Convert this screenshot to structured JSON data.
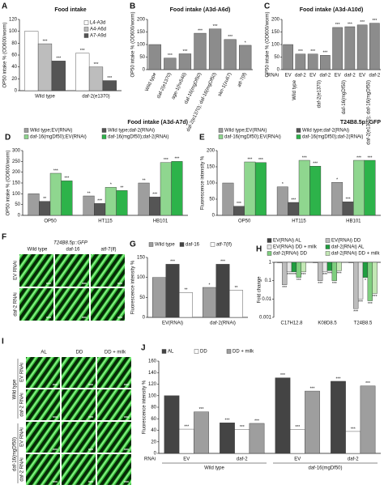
{
  "chart_data": [
    {
      "type": "bar",
      "panel": "A",
      "title": "Food intake",
      "ylabel": "OP50 intake % (OD600/worm)",
      "categories": [
        "Wild type",
        "daf-2(e1370)"
      ],
      "series": [
        {
          "name": "L4-A3d",
          "color": "#ffffff",
          "values": [
            100,
            63
          ],
          "stars": [
            null,
            "***"
          ]
        },
        {
          "name": "A4-A6d",
          "color": "#bdbdbd",
          "values": [
            79,
            40
          ],
          "stars": [
            "***",
            "***"
          ]
        },
        {
          "name": "A7-A9d",
          "color": "#555555",
          "values": [
            50,
            17
          ],
          "stars": [
            "***",
            "***"
          ]
        }
      ],
      "ylim": [
        0,
        120
      ],
      "yticks": [
        0,
        20,
        40,
        60,
        80,
        100,
        120
      ]
    },
    {
      "type": "bar",
      "panel": "B",
      "title": "Food intake (A3d-A6d)",
      "ylabel": "OP50 intake % (OD600/worm)",
      "categories": [
        "Wild type",
        "daf-2(e1370)",
        "age-1(hx546)",
        "daf-16(mgDf50)",
        "daf-2(e1370); daf-16(mgDf50)",
        "skn-1(zu67)",
        "atf-7(lf)"
      ],
      "color": "#8c8c8c",
      "values": [
        100,
        46,
        63,
        145,
        162,
        120,
        97
      ],
      "stars": [
        null,
        "***",
        "***",
        "***",
        "***",
        "***",
        "*"
      ],
      "ylim": [
        0,
        200
      ],
      "yticks": [
        0,
        50,
        100,
        150,
        200
      ]
    },
    {
      "type": "bar",
      "panel": "C",
      "title": "Food intake (A3d-A10d)",
      "ylabel": "OP50 intake % (OD600/worm)",
      "rnai_label": "RNAi",
      "categories": [
        "EV",
        "daf-2",
        "EV",
        "daf-2",
        "EV",
        "daf-2",
        "EV",
        "daf-2"
      ],
      "groups": [
        "Wild type",
        "daf-2(e1370)",
        "daf-16(mgDf50)",
        "daf-2(e1370); daf-16(mgDf50)"
      ],
      "color": "#8c8c8c",
      "values": [
        100,
        62,
        62,
        57,
        168,
        171,
        178,
        185
      ],
      "stars": [
        null,
        "***",
        "***",
        "***",
        "***",
        "***",
        "***",
        "***"
      ],
      "ylim": [
        0,
        200
      ],
      "yticks": [
        0,
        50,
        100,
        150,
        200
      ]
    },
    {
      "type": "bar",
      "panel": "D",
      "title": "Food intake (A3d-A7d)",
      "ylabel": "OP50 intake % (OD600/worm)",
      "categories": [
        "OP50",
        "HT115",
        "HB101"
      ],
      "series": [
        {
          "name": "Wild type;EV(RNAi)",
          "color": "#9e9e9e",
          "values": [
            100,
            90,
            150
          ],
          "stars": [
            null,
            "**",
            "**"
          ]
        },
        {
          "name": "Wild type;daf-2(RNAi)",
          "color": "#555555",
          "values": [
            65,
            55,
            85
          ],
          "stars": [
            "**",
            "***",
            "***"
          ]
        },
        {
          "name": "daf-16(mgDf50);EV(RNAi)",
          "color": "#8fd68f",
          "values": [
            195,
            130,
            245
          ],
          "stars": [
            "***",
            "*",
            "***"
          ]
        },
        {
          "name": "daf-16(mgDf50);daf-2(RNAi)",
          "color": "#2db34a",
          "values": [
            160,
            115,
            250
          ],
          "stars": [
            "***",
            "**",
            "***"
          ]
        }
      ],
      "ylim": [
        0,
        300
      ],
      "yticks": [
        0,
        50,
        100,
        150,
        200,
        250,
        300
      ]
    },
    {
      "type": "bar",
      "panel": "E",
      "title": "T24B8.5p::GFP",
      "ylabel": "Fluorescence intensity %",
      "categories": [
        "OP50",
        "HT115",
        "HB101"
      ],
      "series": [
        {
          "name": "Wild type;EV(RNAi)",
          "color": "#9e9e9e",
          "values": [
            100,
            88,
            102
          ],
          "stars": [
            null,
            "*",
            "*"
          ]
        },
        {
          "name": "Wild type;daf-2(RNAi)",
          "color": "#555555",
          "values": [
            28,
            40,
            42
          ],
          "stars": [
            "***",
            "***",
            "***"
          ]
        },
        {
          "name": "daf-16(mgDf50);EV(RNAi)",
          "color": "#8fd68f",
          "values": [
            165,
            170,
            170
          ],
          "stars": [
            "***",
            "***",
            "***"
          ]
        },
        {
          "name": "daf-16(mgDf50);daf-2(RNAi)",
          "color": "#2db34a",
          "values": [
            163,
            152,
            170
          ],
          "stars": [
            "***",
            "***",
            "***"
          ]
        }
      ],
      "ylim": [
        0,
        200
      ],
      "yticks": [
        0,
        50,
        100,
        150,
        200
      ]
    },
    {
      "type": "bar",
      "panel": "G",
      "ylabel": "Fluorescence intensity %",
      "categories": [
        "EV(RNAi)",
        "daf-2(RNAi)"
      ],
      "series": [
        {
          "name": "Wild type",
          "color": "#9e9e9e",
          "values": [
            100,
            75
          ],
          "stars": [
            null,
            "*"
          ]
        },
        {
          "name": "daf-16",
          "color": "#444444",
          "values": [
            133,
            133
          ],
          "stars": [
            "***",
            "***"
          ]
        },
        {
          "name": "atf-7(lf)",
          "color": "#ffffff",
          "values": [
            62,
            68
          ],
          "stars": [
            "**",
            "**"
          ]
        }
      ],
      "ylim": [
        0,
        150
      ],
      "yticks": [
        0,
        50,
        100,
        150
      ]
    },
    {
      "type": "bar",
      "panel": "H",
      "ylabel": "Fold change",
      "log": true,
      "categories": [
        "C17H12.8",
        "K08D8.5",
        "T24B8.5"
      ],
      "series": [
        {
          "name": "EV(RNAi) AL",
          "color": "#444444",
          "values": [
            1,
            1,
            1
          ],
          "stars": [
            null,
            null,
            null
          ]
        },
        {
          "name": "EV(RNAi) DD",
          "color": "#bdbdbd",
          "values": [
            0.06,
            0.1,
            0.003
          ],
          "stars": [
            "***",
            "***",
            "***"
          ]
        },
        {
          "name": "EV(RNAi) DD + milk",
          "color": "#e6e6e6",
          "values": [
            0.3,
            0.3,
            0.01
          ],
          "stars": [
            "***",
            "***",
            "***"
          ]
        },
        {
          "name": "daf-2(RNAi) AL",
          "color": "#1f9e3f",
          "values": [
            0.3,
            0.35,
            0.15
          ],
          "stars": [
            "***",
            "***",
            "*"
          ]
        },
        {
          "name": "daf-2(RNAi) DD",
          "color": "#7fcf7f",
          "values": [
            0.15,
            0.1,
            0.008
          ],
          "stars": [
            "***",
            "***",
            "***"
          ]
        },
        {
          "name": "daf-2(RNAi) DD + milk",
          "color": "#c3e8b5",
          "values": [
            0.3,
            0.35,
            0.02
          ],
          "stars": [
            "***",
            "***",
            "***"
          ]
        }
      ],
      "ylim": [
        0.001,
        1
      ],
      "yticks": [
        0.001,
        0.01,
        0.1,
        1
      ]
    },
    {
      "type": "bar",
      "panel": "J",
      "ylabel": "Fluorescence intensity %",
      "rnai_label": "RNAi",
      "categories": [
        "EV",
        "daf-2",
        "EV",
        "daf-2"
      ],
      "groups": [
        "Wild type",
        "daf-16(mgDf50)"
      ],
      "series": [
        {
          "name": "AL",
          "color": "#444444",
          "values": [
            100,
            53,
            131,
            125
          ],
          "stars": [
            null,
            "***",
            "***",
            "***"
          ]
        },
        {
          "name": "DD",
          "color": "#ffffff",
          "values": [
            42,
            41,
            41,
            38
          ],
          "stars": [
            "***",
            "***",
            "***",
            "***"
          ]
        },
        {
          "name": "DD + milk",
          "color": "#9e9e9e",
          "values": [
            72,
            52,
            108,
            117
          ],
          "stars": [
            "***",
            "***",
            "***",
            "***"
          ]
        }
      ],
      "ylim": [
        0,
        160
      ],
      "yticks": [
        0,
        20,
        40,
        60,
        80,
        100,
        120,
        140,
        160
      ]
    }
  ],
  "images": [
    {
      "panel": "F",
      "title": "T24B8.5p::GFP",
      "columns": [
        "Wild type",
        "daf-16",
        "atf-7(lf)"
      ],
      "row_groups": [
        {
          "rows": [
            "EV RNAi",
            "daf-2 RNAi"
          ]
        }
      ]
    },
    {
      "panel": "I",
      "columns": [
        "AL",
        "DD",
        "DD + milk"
      ],
      "row_groups": [
        {
          "label": "Wild type",
          "rows": [
            "EV RNAi",
            "daf-2 RNAi"
          ]
        },
        {
          "label": "daf-16(mgDf50)",
          "rows": [
            "EV RNAi",
            "daf-2 RNAi"
          ]
        }
      ]
    }
  ]
}
